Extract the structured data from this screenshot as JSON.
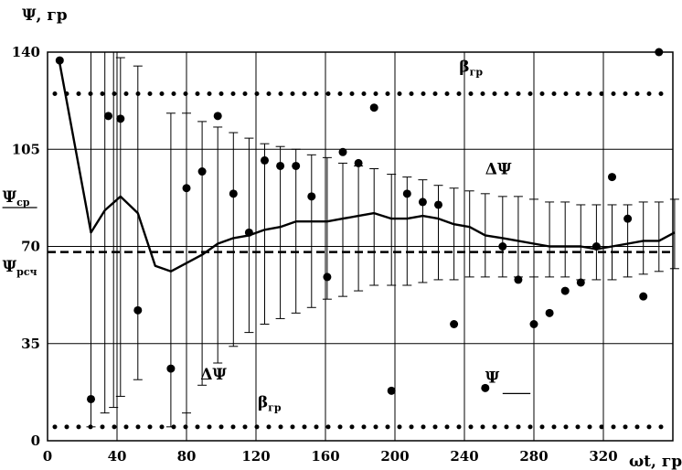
{
  "chart_data": {
    "type": "scatter",
    "title": "",
    "xlabel": "ωt, гр",
    "ylabel": "Ψ, гр",
    "xlim": [
      0,
      360
    ],
    "ylim": [
      0,
      140
    ],
    "x_ticks": [
      "0",
      "40",
      "80",
      "120",
      "160",
      "200",
      "240",
      "280",
      "320"
    ],
    "y_ticks": [
      "0",
      "35",
      "70",
      "105",
      "140"
    ],
    "grid": true,
    "series": [
      {
        "name": "Ψ",
        "kind": "points",
        "points": [
          [
            7,
            137
          ],
          [
            25,
            15
          ],
          [
            35,
            117
          ],
          [
            42,
            116
          ],
          [
            52,
            47
          ],
          [
            71,
            26
          ],
          [
            80,
            91
          ],
          [
            89,
            97
          ],
          [
            98,
            117
          ],
          [
            107,
            89
          ],
          [
            116,
            75
          ],
          [
            125,
            101
          ],
          [
            134,
            99
          ],
          [
            143,
            99
          ],
          [
            152,
            88
          ],
          [
            161,
            59
          ],
          [
            170,
            104
          ],
          [
            179,
            100
          ],
          [
            188,
            120
          ],
          [
            198,
            18
          ],
          [
            207,
            89
          ],
          [
            216,
            86
          ],
          [
            225,
            85
          ],
          [
            234,
            42
          ],
          [
            252,
            19
          ],
          [
            262,
            70
          ],
          [
            271,
            58
          ],
          [
            280,
            42
          ],
          [
            289,
            46
          ],
          [
            298,
            54
          ],
          [
            307,
            57
          ],
          [
            316,
            70
          ],
          [
            325,
            95
          ],
          [
            334,
            80
          ],
          [
            343,
            52
          ],
          [
            352,
            140
          ]
        ]
      },
      {
        "name": "Ψср",
        "kind": "line",
        "points": [
          [
            7,
            136
          ],
          [
            25,
            75
          ],
          [
            33,
            83
          ],
          [
            42,
            88
          ],
          [
            52,
            82
          ],
          [
            62,
            63
          ],
          [
            71,
            61
          ],
          [
            80,
            64
          ],
          [
            89,
            67
          ],
          [
            98,
            71
          ],
          [
            107,
            73
          ],
          [
            116,
            74
          ],
          [
            125,
            76
          ],
          [
            134,
            77
          ],
          [
            143,
            79
          ],
          [
            152,
            79
          ],
          [
            161,
            79
          ],
          [
            170,
            80
          ],
          [
            179,
            81
          ],
          [
            188,
            82
          ],
          [
            198,
            80
          ],
          [
            207,
            80
          ],
          [
            216,
            81
          ],
          [
            225,
            80
          ],
          [
            234,
            78
          ],
          [
            243,
            77
          ],
          [
            252,
            74
          ],
          [
            262,
            73
          ],
          [
            271,
            72
          ],
          [
            280,
            71
          ],
          [
            289,
            70
          ],
          [
            298,
            70
          ],
          [
            307,
            70
          ],
          [
            316,
            69
          ],
          [
            325,
            70
          ],
          [
            334,
            71
          ],
          [
            343,
            72
          ],
          [
            352,
            72
          ],
          [
            361,
            75
          ]
        ]
      },
      {
        "name": "ΔΨ",
        "kind": "error_bars",
        "bars": [
          [
            25,
            5,
            140
          ],
          [
            33,
            10,
            140
          ],
          [
            38,
            12,
            140
          ],
          [
            42,
            16,
            138
          ],
          [
            52,
            22,
            135
          ],
          [
            71,
            5,
            118
          ],
          [
            80,
            10,
            118
          ],
          [
            89,
            20,
            115
          ],
          [
            98,
            28,
            113
          ],
          [
            107,
            34,
            111
          ],
          [
            116,
            39,
            109
          ],
          [
            125,
            42,
            107
          ],
          [
            134,
            44,
            106
          ],
          [
            143,
            46,
            105
          ],
          [
            152,
            48,
            103
          ],
          [
            161,
            51,
            102
          ],
          [
            170,
            52,
            100
          ],
          [
            179,
            54,
            99
          ],
          [
            188,
            56,
            98
          ],
          [
            198,
            56,
            96
          ],
          [
            207,
            56,
            95
          ],
          [
            216,
            57,
            94
          ],
          [
            225,
            58,
            92
          ],
          [
            234,
            58,
            91
          ],
          [
            243,
            59,
            90
          ],
          [
            252,
            59,
            89
          ],
          [
            262,
            59,
            88
          ],
          [
            271,
            59,
            88
          ],
          [
            280,
            59,
            87
          ],
          [
            289,
            59,
            86
          ],
          [
            298,
            59,
            86
          ],
          [
            307,
            58,
            85
          ],
          [
            316,
            58,
            85
          ],
          [
            325,
            58,
            85
          ],
          [
            334,
            59,
            85
          ],
          [
            343,
            60,
            86
          ],
          [
            352,
            61,
            86
          ],
          [
            361,
            62,
            87
          ]
        ]
      },
      {
        "name": "βгр",
        "kind": "hline_dotted",
        "values": [
          125,
          5
        ]
      },
      {
        "name": "Ψрсч",
        "kind": "hline_dashed",
        "value": 68
      }
    ],
    "annotations": [
      {
        "text": "β",
        "sub": "гр",
        "x": 237,
        "y": 133
      },
      {
        "text": "β",
        "sub": "гр",
        "x": 121,
        "y": 12
      },
      {
        "text": "ΔΨ",
        "sub": "",
        "x": 252,
        "y": 96
      },
      {
        "text": "ΔΨ",
        "sub": "",
        "x": 88,
        "y": 22
      },
      {
        "text": "Ψ",
        "sub": "",
        "x": 252,
        "y": 21
      },
      {
        "text": "Ψ",
        "sub": "ср",
        "x": -26,
        "y": 86
      },
      {
        "text": "Ψ",
        "sub": "рсч",
        "x": -26,
        "y": 61
      }
    ]
  }
}
